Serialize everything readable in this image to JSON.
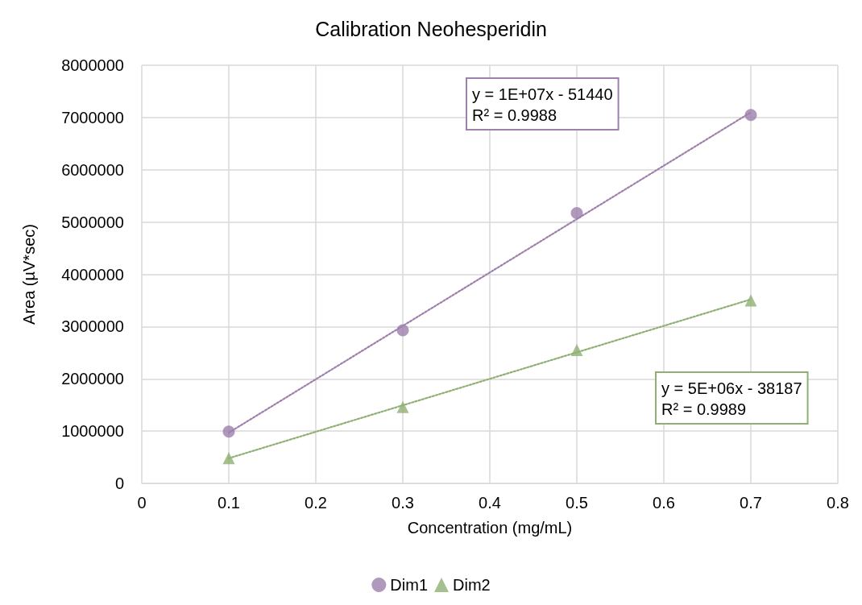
{
  "chart_data": {
    "type": "scatter",
    "title": "Calibration Neohesperidin",
    "xlabel": "Concentration (mg/mL)",
    "ylabel": "Area (µV*sec)",
    "xlim": [
      0,
      0.8
    ],
    "xticks": [
      0,
      0.1,
      0.2,
      0.3,
      0.4,
      0.5,
      0.6,
      0.7,
      0.8
    ],
    "ylim": [
      0,
      8000000
    ],
    "yticks": [
      0,
      1000000,
      2000000,
      3000000,
      4000000,
      5000000,
      6000000,
      7000000,
      8000000
    ],
    "grid": true,
    "legend": "bottom",
    "series": [
      {
        "name": "Dim1",
        "marker": "circle",
        "color": "#9e80ac",
        "x": [
          0.1,
          0.3,
          0.5,
          0.7
        ],
        "values": [
          990000,
          2930000,
          5170000,
          7050000
        ]
      },
      {
        "name": "Dim2",
        "marker": "triangle",
        "color": "#8fb072",
        "x": [
          0.1,
          0.3,
          0.5,
          0.7
        ],
        "values": [
          480000,
          1460000,
          2550000,
          3500000
        ]
      },
      {
        "type": "line",
        "marker": "none",
        "line_style": "dotted",
        "color": "#9e80ac",
        "x": [
          0.1,
          0.7
        ],
        "values": [
          970000,
          7100000
        ]
      },
      {
        "type": "line",
        "marker": "none",
        "line_style": "dotted",
        "color": "#8fb072",
        "x": [
          0.1,
          0.7
        ],
        "values": [
          480000,
          3520000
        ]
      }
    ],
    "annotations": [
      "y = 1E+07x - 51440\nR² = 0.9988",
      "y = 5E+06x - 38187\nR² = 0.9989"
    ]
  }
}
